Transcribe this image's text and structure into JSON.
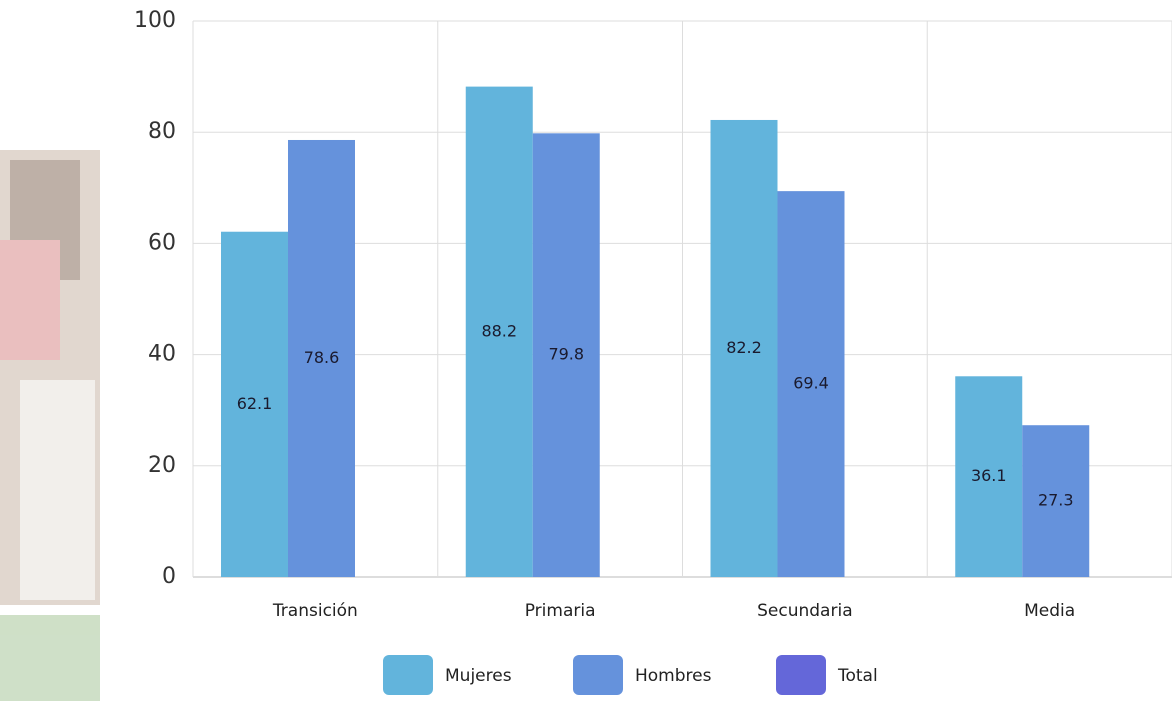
{
  "chart_data": {
    "type": "bar",
    "categories": [
      "Transición",
      "Primaria",
      "Secundaria",
      "Media"
    ],
    "series": [
      {
        "name": "Mujeres",
        "color": "#62b4dc",
        "values": [
          62.1,
          88.2,
          82.2,
          36.1
        ]
      },
      {
        "name": "Hombres",
        "color": "#6592dc",
        "values": [
          78.6,
          79.8,
          69.4,
          27.3
        ]
      },
      {
        "name": "Total",
        "color": "#6467d9",
        "values": [
          null,
          null,
          null,
          null
        ]
      }
    ],
    "ylim": [
      0,
      100
    ],
    "yticks": [
      0,
      20,
      40,
      60,
      80,
      100
    ],
    "grid": true,
    "legend": "bottom"
  }
}
